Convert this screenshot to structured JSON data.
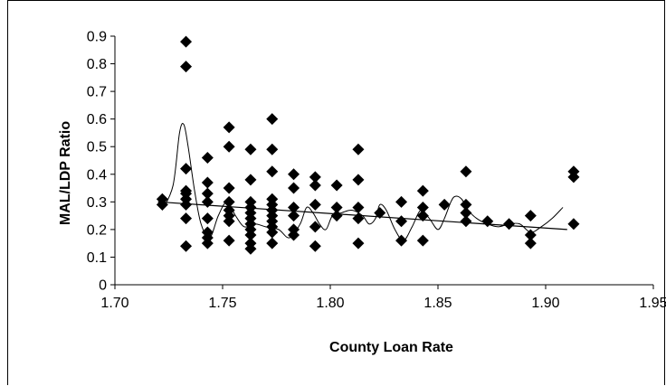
{
  "chart_data": {
    "type": "scatter",
    "title": "",
    "xlabel": "County Loan Rate",
    "ylabel": "MAL/LDP Ratio",
    "xlim": [
      1.7,
      1.95
    ],
    "ylim": [
      0,
      0.9
    ],
    "xticks": [
      "1.70",
      "1.75",
      "1.80",
      "1.85",
      "1.90",
      "1.95"
    ],
    "yticks": [
      "0",
      "0.1",
      "0.2",
      "0.3",
      "0.4",
      "0.5",
      "0.6",
      "0.7",
      "0.8",
      "0.9"
    ],
    "grid": false,
    "legend": "none",
    "marker": "diamond",
    "marker_color": "#000000",
    "points": [
      [
        1.722,
        0.29
      ],
      [
        1.722,
        0.31
      ],
      [
        1.733,
        0.88
      ],
      [
        1.733,
        0.79
      ],
      [
        1.733,
        0.42
      ],
      [
        1.733,
        0.34
      ],
      [
        1.733,
        0.33
      ],
      [
        1.733,
        0.31
      ],
      [
        1.733,
        0.29
      ],
      [
        1.733,
        0.24
      ],
      [
        1.733,
        0.14
      ],
      [
        1.743,
        0.46
      ],
      [
        1.743,
        0.37
      ],
      [
        1.743,
        0.33
      ],
      [
        1.743,
        0.3
      ],
      [
        1.743,
        0.24
      ],
      [
        1.743,
        0.19
      ],
      [
        1.743,
        0.17
      ],
      [
        1.743,
        0.15
      ],
      [
        1.753,
        0.57
      ],
      [
        1.753,
        0.5
      ],
      [
        1.753,
        0.35
      ],
      [
        1.753,
        0.3
      ],
      [
        1.753,
        0.27
      ],
      [
        1.753,
        0.25
      ],
      [
        1.753,
        0.23
      ],
      [
        1.753,
        0.16
      ],
      [
        1.763,
        0.49
      ],
      [
        1.763,
        0.38
      ],
      [
        1.763,
        0.3
      ],
      [
        1.763,
        0.28
      ],
      [
        1.763,
        0.26
      ],
      [
        1.763,
        0.24
      ],
      [
        1.763,
        0.22
      ],
      [
        1.763,
        0.2
      ],
      [
        1.763,
        0.18
      ],
      [
        1.763,
        0.15
      ],
      [
        1.763,
        0.13
      ],
      [
        1.773,
        0.6
      ],
      [
        1.773,
        0.49
      ],
      [
        1.773,
        0.41
      ],
      [
        1.773,
        0.31
      ],
      [
        1.773,
        0.29
      ],
      [
        1.773,
        0.27
      ],
      [
        1.773,
        0.25
      ],
      [
        1.773,
        0.23
      ],
      [
        1.773,
        0.21
      ],
      [
        1.773,
        0.19
      ],
      [
        1.773,
        0.15
      ],
      [
        1.783,
        0.4
      ],
      [
        1.783,
        0.35
      ],
      [
        1.783,
        0.28
      ],
      [
        1.783,
        0.25
      ],
      [
        1.783,
        0.2
      ],
      [
        1.783,
        0.18
      ],
      [
        1.793,
        0.39
      ],
      [
        1.793,
        0.36
      ],
      [
        1.793,
        0.29
      ],
      [
        1.793,
        0.21
      ],
      [
        1.793,
        0.14
      ],
      [
        1.803,
        0.36
      ],
      [
        1.803,
        0.28
      ],
      [
        1.803,
        0.25
      ],
      [
        1.813,
        0.49
      ],
      [
        1.813,
        0.38
      ],
      [
        1.813,
        0.28
      ],
      [
        1.813,
        0.24
      ],
      [
        1.813,
        0.15
      ],
      [
        1.823,
        0.26
      ],
      [
        1.833,
        0.3
      ],
      [
        1.833,
        0.23
      ],
      [
        1.833,
        0.16
      ],
      [
        1.843,
        0.34
      ],
      [
        1.843,
        0.28
      ],
      [
        1.843,
        0.25
      ],
      [
        1.843,
        0.16
      ],
      [
        1.853,
        0.29
      ],
      [
        1.863,
        0.41
      ],
      [
        1.863,
        0.29
      ],
      [
        1.863,
        0.26
      ],
      [
        1.863,
        0.23
      ],
      [
        1.873,
        0.23
      ],
      [
        1.883,
        0.22
      ],
      [
        1.893,
        0.25
      ],
      [
        1.893,
        0.18
      ],
      [
        1.893,
        0.15
      ],
      [
        1.913,
        0.41
      ],
      [
        1.913,
        0.39
      ],
      [
        1.913,
        0.22
      ]
    ],
    "trend_linear": [
      [
        1.72,
        0.3
      ],
      [
        1.91,
        0.2
      ]
    ],
    "trend_smooth": [
      [
        1.722,
        0.27
      ],
      [
        1.727,
        0.36
      ],
      [
        1.73,
        0.55
      ],
      [
        1.732,
        0.58
      ],
      [
        1.734,
        0.5
      ],
      [
        1.737,
        0.34
      ],
      [
        1.74,
        0.22
      ],
      [
        1.744,
        0.17
      ],
      [
        1.748,
        0.25
      ],
      [
        1.752,
        0.3
      ],
      [
        1.756,
        0.25
      ],
      [
        1.76,
        0.21
      ],
      [
        1.765,
        0.22
      ],
      [
        1.77,
        0.21
      ],
      [
        1.776,
        0.2
      ],
      [
        1.781,
        0.17
      ],
      [
        1.786,
        0.22
      ],
      [
        1.789,
        0.28
      ],
      [
        1.792,
        0.26
      ],
      [
        1.795,
        0.22
      ],
      [
        1.798,
        0.2
      ],
      [
        1.801,
        0.25
      ],
      [
        1.805,
        0.26
      ],
      [
        1.81,
        0.27
      ],
      [
        1.815,
        0.25
      ],
      [
        1.818,
        0.22
      ],
      [
        1.821,
        0.24
      ],
      [
        1.823,
        0.29
      ],
      [
        1.826,
        0.27
      ],
      [
        1.83,
        0.2
      ],
      [
        1.834,
        0.16
      ],
      [
        1.838,
        0.21
      ],
      [
        1.842,
        0.27
      ],
      [
        1.846,
        0.24
      ],
      [
        1.85,
        0.2
      ],
      [
        1.853,
        0.24
      ],
      [
        1.856,
        0.3
      ],
      [
        1.858,
        0.32
      ],
      [
        1.861,
        0.31
      ],
      [
        1.864,
        0.27
      ],
      [
        1.868,
        0.24
      ],
      [
        1.873,
        0.22
      ],
      [
        1.878,
        0.21
      ],
      [
        1.883,
        0.22
      ],
      [
        1.888,
        0.22
      ],
      [
        1.893,
        0.19
      ],
      [
        1.898,
        0.21
      ],
      [
        1.903,
        0.24
      ],
      [
        1.908,
        0.28
      ]
    ]
  }
}
